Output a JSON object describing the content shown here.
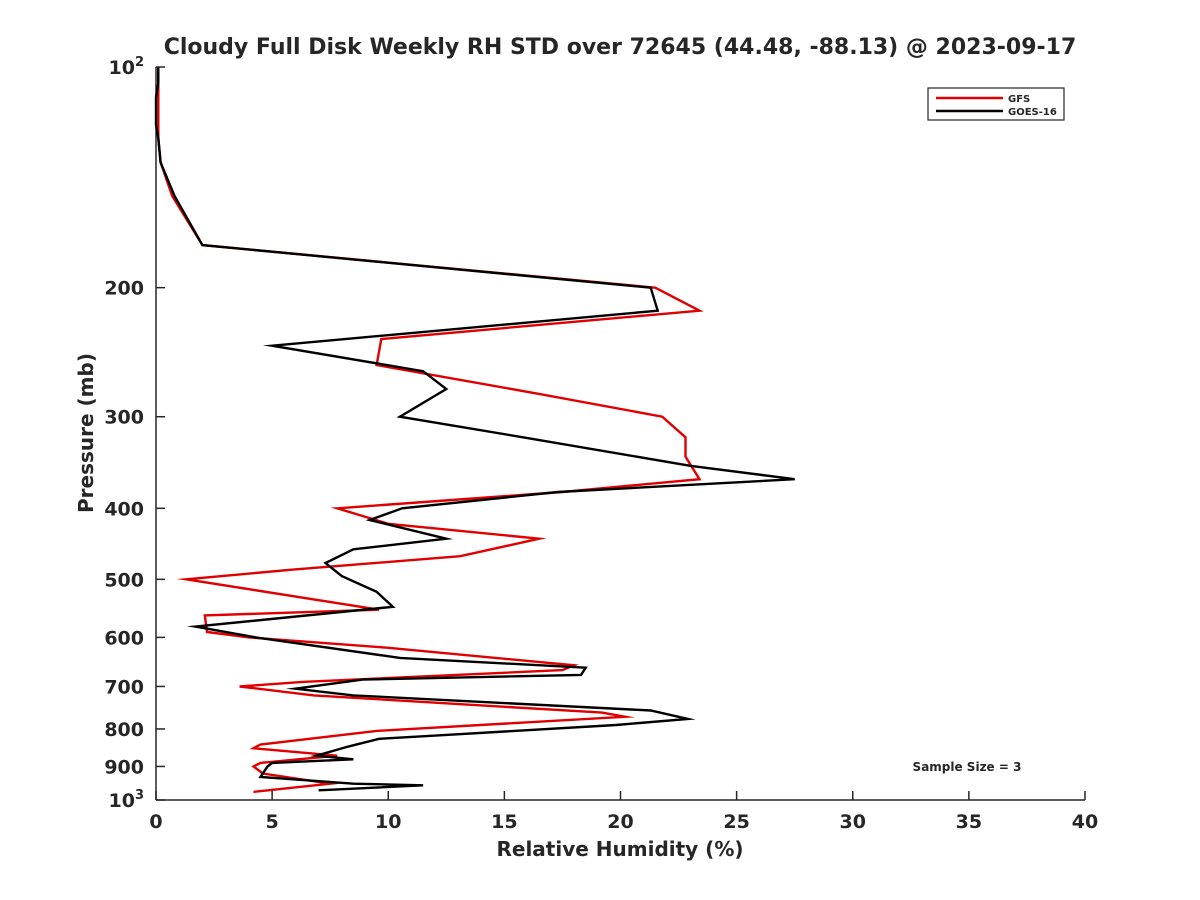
{
  "chart_data": {
    "type": "line",
    "title": "Cloudy Full Disk Weekly RH STD over 72645 (44.48, -88.13) @ 2023-09-17",
    "xlabel": "Relative Humidity (%)",
    "ylabel": "Pressure (mb)",
    "xlim": [
      0,
      40
    ],
    "ylim": [
      100,
      1000
    ],
    "y_scale": "log",
    "y_reversed": true,
    "grid": false,
    "legend_position": "top-right",
    "x_ticks": [
      "0",
      "5",
      "10",
      "15",
      "20",
      "25",
      "30",
      "35",
      "40"
    ],
    "y_ticks": [
      {
        "value": 100,
        "base": "10",
        "exp": "2"
      },
      {
        "value": 200,
        "label": "200"
      },
      {
        "value": 300,
        "label": "300"
      },
      {
        "value": 400,
        "label": "400"
      },
      {
        "value": 500,
        "label": "500"
      },
      {
        "value": 600,
        "label": "600"
      },
      {
        "value": 700,
        "label": "700"
      },
      {
        "value": 800,
        "label": "800"
      },
      {
        "value": 900,
        "label": "900"
      },
      {
        "value": 1000,
        "base": "10",
        "exp": "3"
      }
    ],
    "annotation": "Sample Size = 3",
    "series": [
      {
        "name": "GFS",
        "color": "#e00000",
        "points": [
          [
            0.1,
            100
          ],
          [
            0.1,
            105
          ],
          [
            0.1,
            110
          ],
          [
            0.1,
            115
          ],
          [
            0.1,
            120
          ],
          [
            0.1,
            125
          ],
          [
            0.2,
            135
          ],
          [
            0.7,
            150
          ],
          [
            2.0,
            175
          ],
          [
            21.5,
            200
          ],
          [
            23.4,
            215
          ],
          [
            9.7,
            235
          ],
          [
            9.5,
            255
          ],
          [
            16.7,
            280
          ],
          [
            21.8,
            300
          ],
          [
            22.8,
            320
          ],
          [
            22.8,
            340
          ],
          [
            23.4,
            365
          ],
          [
            17.5,
            380
          ],
          [
            7.8,
            400
          ],
          [
            10.0,
            420
          ],
          [
            16.5,
            440
          ],
          [
            13.1,
            465
          ],
          [
            5.9,
            485
          ],
          [
            1.3,
            500
          ],
          [
            9.6,
            550
          ],
          [
            2.1,
            560
          ],
          [
            2.2,
            590
          ],
          [
            4.0,
            600
          ],
          [
            10.0,
            620
          ],
          [
            18.0,
            655
          ],
          [
            17.5,
            665
          ],
          [
            6.3,
            690
          ],
          [
            3.6,
            700
          ],
          [
            6.8,
            720
          ],
          [
            19.2,
            760
          ],
          [
            20.2,
            770
          ],
          [
            9.5,
            805
          ],
          [
            4.5,
            840
          ],
          [
            4.2,
            850
          ],
          [
            7.8,
            870
          ],
          [
            4.5,
            890
          ],
          [
            4.2,
            900
          ],
          [
            4.6,
            920
          ],
          [
            7.5,
            950
          ],
          [
            4.2,
            975
          ]
        ]
      },
      {
        "name": "GOES-16",
        "color": "#000000",
        "points": [
          [
            0.1,
            100
          ],
          [
            0.1,
            105
          ],
          [
            0.0,
            110
          ],
          [
            0.0,
            115
          ],
          [
            0.0,
            120
          ],
          [
            0.1,
            125
          ],
          [
            0.2,
            135
          ],
          [
            0.8,
            150
          ],
          [
            2.0,
            175
          ],
          [
            21.3,
            200
          ],
          [
            21.6,
            215
          ],
          [
            5.0,
            240
          ],
          [
            11.5,
            260
          ],
          [
            12.5,
            275
          ],
          [
            10.5,
            300
          ],
          [
            15.8,
            320
          ],
          [
            23.0,
            350
          ],
          [
            27.5,
            365
          ],
          [
            17.3,
            380
          ],
          [
            10.6,
            400
          ],
          [
            9.2,
            415
          ],
          [
            12.5,
            440
          ],
          [
            8.5,
            455
          ],
          [
            7.3,
            475
          ],
          [
            8.0,
            495
          ],
          [
            9.5,
            520
          ],
          [
            10.2,
            545
          ],
          [
            1.7,
            580
          ],
          [
            4.3,
            600
          ],
          [
            10.5,
            640
          ],
          [
            18.5,
            660
          ],
          [
            18.3,
            675
          ],
          [
            8.9,
            685
          ],
          [
            6.0,
            705
          ],
          [
            8.5,
            720
          ],
          [
            21.3,
            755
          ],
          [
            22.9,
            775
          ],
          [
            19.8,
            790
          ],
          [
            12.5,
            815
          ],
          [
            9.6,
            825
          ],
          [
            8.3,
            845
          ],
          [
            6.9,
            870
          ],
          [
            8.5,
            880
          ],
          [
            5.0,
            890
          ],
          [
            4.8,
            900
          ],
          [
            4.5,
            930
          ],
          [
            8.5,
            950
          ],
          [
            11.5,
            955
          ],
          [
            7.0,
            970
          ]
        ]
      }
    ]
  }
}
